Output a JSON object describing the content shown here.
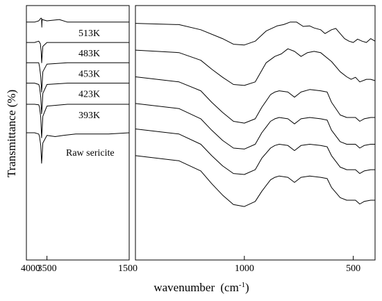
{
  "chart_data": {
    "type": "line",
    "title": "",
    "xlabel": "wavenumber",
    "xlabel_unit": "(cm",
    "xlabel_unit_sup": "-1",
    "xlabel_unit_end": ")",
    "ylabel": "Transmittance (%)",
    "y_ticks_shown": false,
    "panels": [
      {
        "name": "left",
        "xlim": [
          4000,
          1500
        ],
        "ticks": [
          4000,
          3500,
          1500
        ],
        "tick_labels": [
          "4000",
          "3500",
          "1500"
        ]
      },
      {
        "name": "right",
        "xlim": [
          1500,
          400
        ],
        "ticks": [
          1000,
          500
        ],
        "tick_labels": [
          "1000",
          "500"
        ]
      }
    ],
    "series": [
      {
        "name": "513K",
        "left_values": [
          [
            4000,
            0.935
          ],
          [
            3800,
            0.935
          ],
          [
            3700,
            0.94
          ],
          [
            3650,
            0.95
          ],
          [
            3630,
            0.95
          ],
          [
            3625,
            0.915
          ],
          [
            3618,
            0.945
          ],
          [
            3500,
            0.94
          ],
          [
            3200,
            0.945
          ],
          [
            3000,
            0.935
          ],
          [
            2000,
            0.935
          ],
          [
            1500,
            0.935
          ]
        ],
        "right_values": [
          [
            1500,
            0.93
          ],
          [
            1300,
            0.925
          ],
          [
            1200,
            0.905
          ],
          [
            1100,
            0.87
          ],
          [
            1050,
            0.848
          ],
          [
            1000,
            0.845
          ],
          [
            950,
            0.86
          ],
          [
            900,
            0.9
          ],
          [
            850,
            0.92
          ],
          [
            820,
            0.925
          ],
          [
            790,
            0.935
          ],
          [
            760,
            0.935
          ],
          [
            730,
            0.918
          ],
          [
            700,
            0.92
          ],
          [
            680,
            0.912
          ],
          [
            650,
            0.905
          ],
          [
            630,
            0.89
          ],
          [
            600,
            0.905
          ],
          [
            580,
            0.91
          ],
          [
            560,
            0.89
          ],
          [
            540,
            0.87
          ],
          [
            520,
            0.86
          ],
          [
            500,
            0.855
          ],
          [
            480,
            0.868
          ],
          [
            460,
            0.86
          ],
          [
            440,
            0.855
          ],
          [
            420,
            0.87
          ],
          [
            400,
            0.86
          ]
        ]
      },
      {
        "name": "483K",
        "left_values": [
          [
            4000,
            0.855
          ],
          [
            3800,
            0.855
          ],
          [
            3700,
            0.86
          ],
          [
            3660,
            0.85
          ],
          [
            3640,
            0.82
          ],
          [
            3628,
            0.775
          ],
          [
            3618,
            0.8
          ],
          [
            3600,
            0.84
          ],
          [
            3500,
            0.855
          ],
          [
            3000,
            0.855
          ],
          [
            2000,
            0.855
          ],
          [
            1500,
            0.855
          ]
        ],
        "right_values": [
          [
            1500,
            0.825
          ],
          [
            1300,
            0.815
          ],
          [
            1200,
            0.785
          ],
          [
            1150,
            0.75
          ],
          [
            1100,
            0.718
          ],
          [
            1050,
            0.69
          ],
          [
            1000,
            0.686
          ],
          [
            950,
            0.7
          ],
          [
            900,
            0.775
          ],
          [
            860,
            0.8
          ],
          [
            830,
            0.81
          ],
          [
            800,
            0.83
          ],
          [
            770,
            0.82
          ],
          [
            740,
            0.8
          ],
          [
            710,
            0.815
          ],
          [
            680,
            0.82
          ],
          [
            650,
            0.815
          ],
          [
            600,
            0.78
          ],
          [
            560,
            0.74
          ],
          [
            530,
            0.72
          ],
          [
            510,
            0.71
          ],
          [
            490,
            0.718
          ],
          [
            470,
            0.7
          ],
          [
            440,
            0.71
          ],
          [
            420,
            0.71
          ],
          [
            400,
            0.705
          ]
        ]
      },
      {
        "name": "453K",
        "left_values": [
          [
            4000,
            0.775
          ],
          [
            3800,
            0.775
          ],
          [
            3700,
            0.775
          ],
          [
            3680,
            0.76
          ],
          [
            3650,
            0.72
          ],
          [
            3630,
            0.66
          ],
          [
            3618,
            0.69
          ],
          [
            3600,
            0.74
          ],
          [
            3500,
            0.77
          ],
          [
            3000,
            0.775
          ],
          [
            2000,
            0.775
          ],
          [
            1500,
            0.775
          ]
        ],
        "right_values": [
          [
            1500,
            0.72
          ],
          [
            1300,
            0.7
          ],
          [
            1200,
            0.665
          ],
          [
            1150,
            0.62
          ],
          [
            1100,
            0.58
          ],
          [
            1050,
            0.545
          ],
          [
            1000,
            0.538
          ],
          [
            950,
            0.555
          ],
          [
            920,
            0.6
          ],
          [
            880,
            0.65
          ],
          [
            860,
            0.66
          ],
          [
            840,
            0.665
          ],
          [
            800,
            0.66
          ],
          [
            770,
            0.64
          ],
          [
            740,
            0.66
          ],
          [
            700,
            0.67
          ],
          [
            650,
            0.665
          ],
          [
            620,
            0.66
          ],
          [
            600,
            0.62
          ],
          [
            560,
            0.57
          ],
          [
            530,
            0.56
          ],
          [
            510,
            0.56
          ],
          [
            490,
            0.56
          ],
          [
            470,
            0.545
          ],
          [
            450,
            0.555
          ],
          [
            420,
            0.56
          ],
          [
            400,
            0.56
          ]
        ]
      },
      {
        "name": "423K",
        "left_values": [
          [
            4000,
            0.695
          ],
          [
            3800,
            0.695
          ],
          [
            3700,
            0.69
          ],
          [
            3680,
            0.68
          ],
          [
            3650,
            0.64
          ],
          [
            3630,
            0.575
          ],
          [
            3618,
            0.6
          ],
          [
            3600,
            0.655
          ],
          [
            3500,
            0.69
          ],
          [
            3000,
            0.695
          ],
          [
            2000,
            0.695
          ],
          [
            1500,
            0.695
          ]
        ],
        "right_values": [
          [
            1500,
            0.615
          ],
          [
            1300,
            0.595
          ],
          [
            1200,
            0.555
          ],
          [
            1150,
            0.51
          ],
          [
            1100,
            0.47
          ],
          [
            1050,
            0.44
          ],
          [
            1000,
            0.436
          ],
          [
            950,
            0.455
          ],
          [
            920,
            0.5
          ],
          [
            880,
            0.545
          ],
          [
            860,
            0.555
          ],
          [
            840,
            0.56
          ],
          [
            800,
            0.555
          ],
          [
            770,
            0.535
          ],
          [
            740,
            0.555
          ],
          [
            700,
            0.56
          ],
          [
            650,
            0.555
          ],
          [
            620,
            0.55
          ],
          [
            600,
            0.51
          ],
          [
            560,
            0.465
          ],
          [
            530,
            0.455
          ],
          [
            510,
            0.455
          ],
          [
            490,
            0.455
          ],
          [
            470,
            0.44
          ],
          [
            450,
            0.45
          ],
          [
            420,
            0.455
          ],
          [
            400,
            0.455
          ]
        ]
      },
      {
        "name": "393K",
        "left_values": [
          [
            4000,
            0.612
          ],
          [
            3800,
            0.612
          ],
          [
            3700,
            0.61
          ],
          [
            3680,
            0.6
          ],
          [
            3650,
            0.56
          ],
          [
            3630,
            0.48
          ],
          [
            3618,
            0.51
          ],
          [
            3600,
            0.565
          ],
          [
            3500,
            0.605
          ],
          [
            3000,
            0.612
          ],
          [
            2000,
            0.612
          ],
          [
            1500,
            0.612
          ]
        ],
        "right_values": [
          [
            1500,
            0.515
          ],
          [
            1300,
            0.495
          ],
          [
            1200,
            0.455
          ],
          [
            1150,
            0.41
          ],
          [
            1100,
            0.37
          ],
          [
            1050,
            0.34
          ],
          [
            1000,
            0.336
          ],
          [
            950,
            0.355
          ],
          [
            920,
            0.4
          ],
          [
            880,
            0.44
          ],
          [
            860,
            0.45
          ],
          [
            840,
            0.455
          ],
          [
            800,
            0.45
          ],
          [
            770,
            0.43
          ],
          [
            740,
            0.45
          ],
          [
            700,
            0.455
          ],
          [
            650,
            0.45
          ],
          [
            620,
            0.445
          ],
          [
            600,
            0.41
          ],
          [
            560,
            0.365
          ],
          [
            530,
            0.355
          ],
          [
            510,
            0.355
          ],
          [
            490,
            0.355
          ],
          [
            470,
            0.34
          ],
          [
            450,
            0.35
          ],
          [
            420,
            0.355
          ],
          [
            400,
            0.355
          ]
        ]
      },
      {
        "name": "Raw sericite",
        "left_values": [
          [
            4000,
            0.5
          ],
          [
            3800,
            0.5
          ],
          [
            3700,
            0.495
          ],
          [
            3680,
            0.485
          ],
          [
            3650,
            0.45
          ],
          [
            3630,
            0.38
          ],
          [
            3618,
            0.41
          ],
          [
            3600,
            0.46
          ],
          [
            3500,
            0.49
          ],
          [
            3300,
            0.485
          ],
          [
            3100,
            0.49
          ],
          [
            2800,
            0.495
          ],
          [
            2000,
            0.495
          ],
          [
            1500,
            0.5
          ]
        ],
        "right_values": [
          [
            1500,
            0.41
          ],
          [
            1300,
            0.39
          ],
          [
            1200,
            0.35
          ],
          [
            1150,
            0.3
          ],
          [
            1100,
            0.255
          ],
          [
            1050,
            0.218
          ],
          [
            1000,
            0.21
          ],
          [
            950,
            0.23
          ],
          [
            920,
            0.27
          ],
          [
            880,
            0.315
          ],
          [
            860,
            0.325
          ],
          [
            840,
            0.33
          ],
          [
            800,
            0.325
          ],
          [
            770,
            0.305
          ],
          [
            740,
            0.325
          ],
          [
            700,
            0.33
          ],
          [
            650,
            0.325
          ],
          [
            620,
            0.32
          ],
          [
            600,
            0.285
          ],
          [
            560,
            0.245
          ],
          [
            530,
            0.235
          ],
          [
            510,
            0.235
          ],
          [
            490,
            0.235
          ],
          [
            470,
            0.22
          ],
          [
            450,
            0.23
          ],
          [
            420,
            0.235
          ],
          [
            400,
            0.235
          ]
        ]
      }
    ]
  }
}
